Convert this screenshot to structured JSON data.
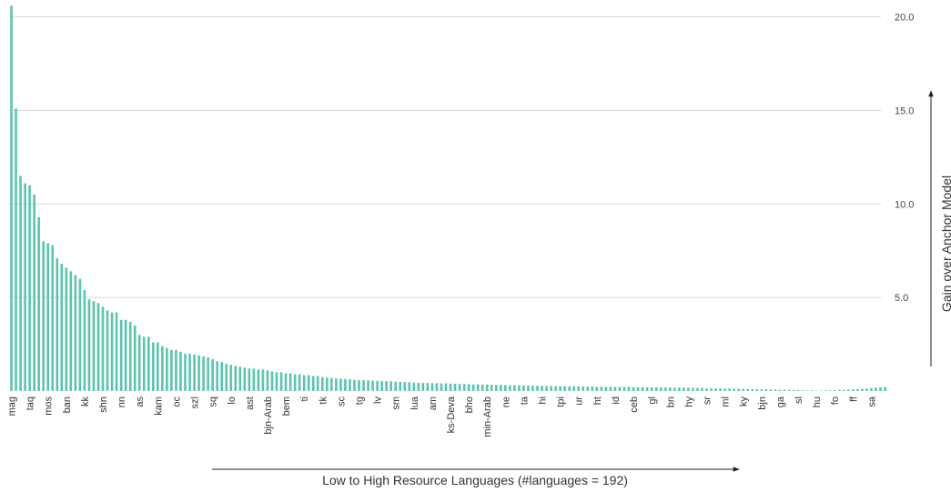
{
  "chart_data": {
    "type": "bar",
    "x_label": "Low to High Resource Languages (#languages = 192)",
    "y_label": "Gain over Anchor Model",
    "color": "#5cc4ad",
    "grid": true,
    "ylim": [
      0,
      20.9
    ],
    "yticks": [
      {
        "value": 5,
        "label": "5.0"
      },
      {
        "value": 10,
        "label": "10.0"
      },
      {
        "value": 15,
        "label": "15.0"
      },
      {
        "value": 20,
        "label": "20.0"
      }
    ],
    "categories": [
      "mag",
      null,
      null,
      null,
      "taq",
      null,
      null,
      null,
      "mos",
      null,
      null,
      null,
      "ban",
      null,
      null,
      null,
      "kk",
      null,
      null,
      null,
      "shn",
      null,
      null,
      null,
      "nn",
      null,
      null,
      null,
      "as",
      null,
      null,
      null,
      "kam",
      null,
      null,
      null,
      "oc",
      null,
      null,
      null,
      "szl",
      null,
      null,
      null,
      "sq",
      null,
      null,
      null,
      "lo",
      null,
      null,
      null,
      "ast",
      null,
      null,
      null,
      "bjn-Arab",
      null,
      null,
      null,
      "bem",
      null,
      null,
      null,
      "ti",
      null,
      null,
      null,
      "tk",
      null,
      null,
      null,
      "sc",
      null,
      null,
      null,
      "tg",
      null,
      null,
      null,
      "lv",
      null,
      null,
      null,
      "sm",
      null,
      null,
      null,
      "lua",
      null,
      null,
      null,
      "am",
      null,
      null,
      null,
      "ks-Deva",
      null,
      null,
      null,
      "bho",
      null,
      null,
      null,
      "min-Arab",
      null,
      null,
      null,
      "ne",
      null,
      null,
      null,
      "ta",
      null,
      null,
      null,
      "hi",
      null,
      null,
      null,
      "tpi",
      null,
      null,
      null,
      "ur",
      null,
      null,
      null,
      "ht",
      null,
      null,
      null,
      "id",
      null,
      null,
      null,
      "ceb",
      null,
      null,
      null,
      "gl",
      null,
      null,
      null,
      "bn",
      null,
      null,
      null,
      "hy",
      null,
      null,
      null,
      "sr",
      null,
      null,
      null,
      "ml",
      null,
      null,
      null,
      "ky",
      null,
      null,
      null,
      "bjn",
      null,
      null,
      null,
      "ga",
      null,
      null,
      null,
      "sl",
      null,
      null,
      null,
      "hu",
      null,
      null,
      null,
      "fo",
      null,
      null,
      null,
      "ff",
      null,
      null,
      null,
      "sa",
      null,
      null,
      null
    ],
    "values": [
      20.6,
      15.1,
      11.5,
      11.1,
      11.0,
      10.5,
      9.3,
      8.0,
      7.9,
      7.8,
      7.1,
      6.8,
      6.6,
      6.4,
      6.2,
      6.0,
      5.4,
      4.9,
      4.8,
      4.7,
      4.5,
      4.3,
      4.2,
      4.2,
      3.8,
      3.8,
      3.7,
      3.5,
      3.0,
      2.9,
      2.9,
      2.6,
      2.6,
      2.4,
      2.3,
      2.2,
      2.2,
      2.1,
      2.0,
      2.0,
      1.95,
      1.9,
      1.85,
      1.8,
      1.7,
      1.6,
      1.55,
      1.45,
      1.4,
      1.35,
      1.3,
      1.25,
      1.2,
      1.2,
      1.15,
      1.15,
      1.1,
      1.05,
      1.0,
      1.0,
      0.95,
      0.95,
      0.9,
      0.9,
      0.85,
      0.85,
      0.8,
      0.8,
      0.75,
      0.72,
      0.7,
      0.68,
      0.66,
      0.64,
      0.62,
      0.6,
      0.58,
      0.58,
      0.57,
      0.56,
      0.55,
      0.54,
      0.53,
      0.52,
      0.5,
      0.49,
      0.48,
      0.47,
      0.45,
      0.44,
      0.43,
      0.43,
      0.42,
      0.42,
      0.41,
      0.41,
      0.4,
      0.39,
      0.38,
      0.38,
      0.37,
      0.36,
      0.36,
      0.35,
      0.35,
      0.34,
      0.33,
      0.33,
      0.32,
      0.31,
      0.31,
      0.3,
      0.3,
      0.29,
      0.29,
      0.28,
      0.28,
      0.27,
      0.27,
      0.26,
      0.26,
      0.26,
      0.25,
      0.25,
      0.25,
      0.24,
      0.24,
      0.24,
      0.23,
      0.23,
      0.23,
      0.23,
      0.22,
      0.22,
      0.22,
      0.22,
      0.21,
      0.21,
      0.21,
      0.2,
      0.2,
      0.2,
      0.19,
      0.19,
      0.19,
      0.18,
      0.18,
      0.18,
      0.17,
      0.17,
      0.16,
      0.16,
      0.15,
      0.15,
      0.14,
      0.14,
      0.13,
      0.13,
      0.12,
      0.12,
      0.11,
      0.11,
      0.1,
      0.1,
      0.09,
      0.09,
      0.08,
      0.08,
      0.07,
      0.07,
      0.06,
      0.05,
      0.05,
      0.04,
      0.03,
      0.03,
      0.02,
      0.02,
      0.03,
      0.04,
      0.05,
      0.06,
      0.07,
      0.08,
      0.09,
      0.1,
      0.12,
      0.14,
      0.16,
      0.18,
      0.2,
      0.22
    ]
  }
}
